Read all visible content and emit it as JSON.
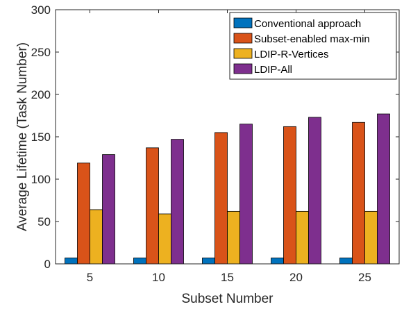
{
  "chart_data": {
    "type": "bar",
    "title": "",
    "xlabel": "Subset Number",
    "ylabel": "Average Lifetime (Task Number)",
    "categories": [
      "5",
      "10",
      "15",
      "20",
      "25"
    ],
    "ylim": [
      0,
      300
    ],
    "yticks": [
      "0",
      "50",
      "100",
      "150",
      "200",
      "250",
      "300"
    ],
    "legend_position": "top-right",
    "grid": false,
    "series": [
      {
        "name": "Conventional approach",
        "color": "#0072BD",
        "values": [
          7,
          7,
          7,
          7,
          7
        ]
      },
      {
        "name": "Subset-enabled max-min",
        "color": "#D95319",
        "values": [
          119,
          137,
          155,
          162,
          167
        ]
      },
      {
        "name": "LDIP-R-Vertices",
        "color": "#EDB120",
        "values": [
          64,
          59,
          62,
          62,
          62
        ]
      },
      {
        "name": "LDIP-All",
        "color": "#7E2F8E",
        "values": [
          129,
          147,
          165,
          173,
          177
        ]
      }
    ]
  }
}
